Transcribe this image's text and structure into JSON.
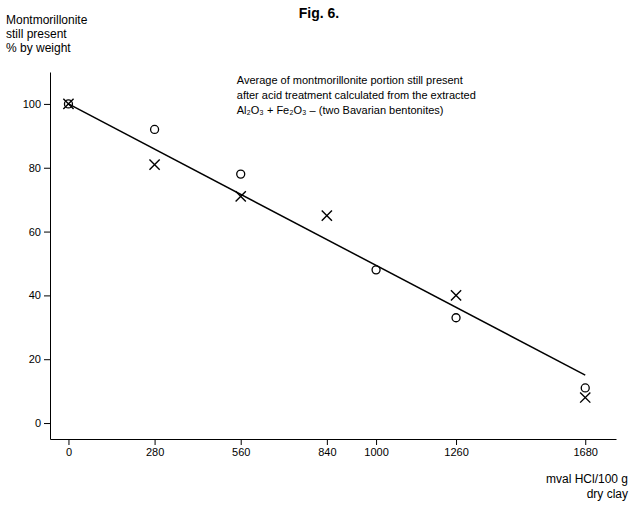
{
  "chart_data": {
    "type": "scatter",
    "title": "Fig. 6.",
    "ylabel": [
      "Montmorillonite",
      "still present",
      "% by weight"
    ],
    "xlabel": [
      "mval HCl/100 g",
      "dry clay"
    ],
    "annotations": [
      "Average of montmorillonite portion still present",
      "after acid treatment calculated from the extracted",
      "Al₂O₃ + Fe₂O₃ – (two Bavarian bentonites)"
    ],
    "xlim": [
      -60,
      1780
    ],
    "ylim": [
      -5,
      110
    ],
    "xticks": [
      0,
      280,
      560,
      840,
      1000,
      1260,
      1680
    ],
    "yticks": [
      0,
      20,
      40,
      60,
      80,
      100
    ],
    "grid": false,
    "series": [
      {
        "type": "scatter",
        "marker": "circle",
        "color": "#000000",
        "x": [
          0,
          280,
          560,
          1000,
          1260,
          1680
        ],
        "values": [
          100,
          92,
          78,
          48,
          33,
          11
        ]
      },
      {
        "type": "scatter",
        "marker": "x",
        "color": "#000000",
        "x": [
          0,
          280,
          560,
          840,
          1260,
          1680
        ],
        "values": [
          100,
          81,
          71,
          65,
          40,
          8
        ]
      },
      {
        "type": "line",
        "color": "#000000",
        "x": [
          0,
          1680
        ],
        "values": [
          100,
          15
        ]
      }
    ]
  }
}
